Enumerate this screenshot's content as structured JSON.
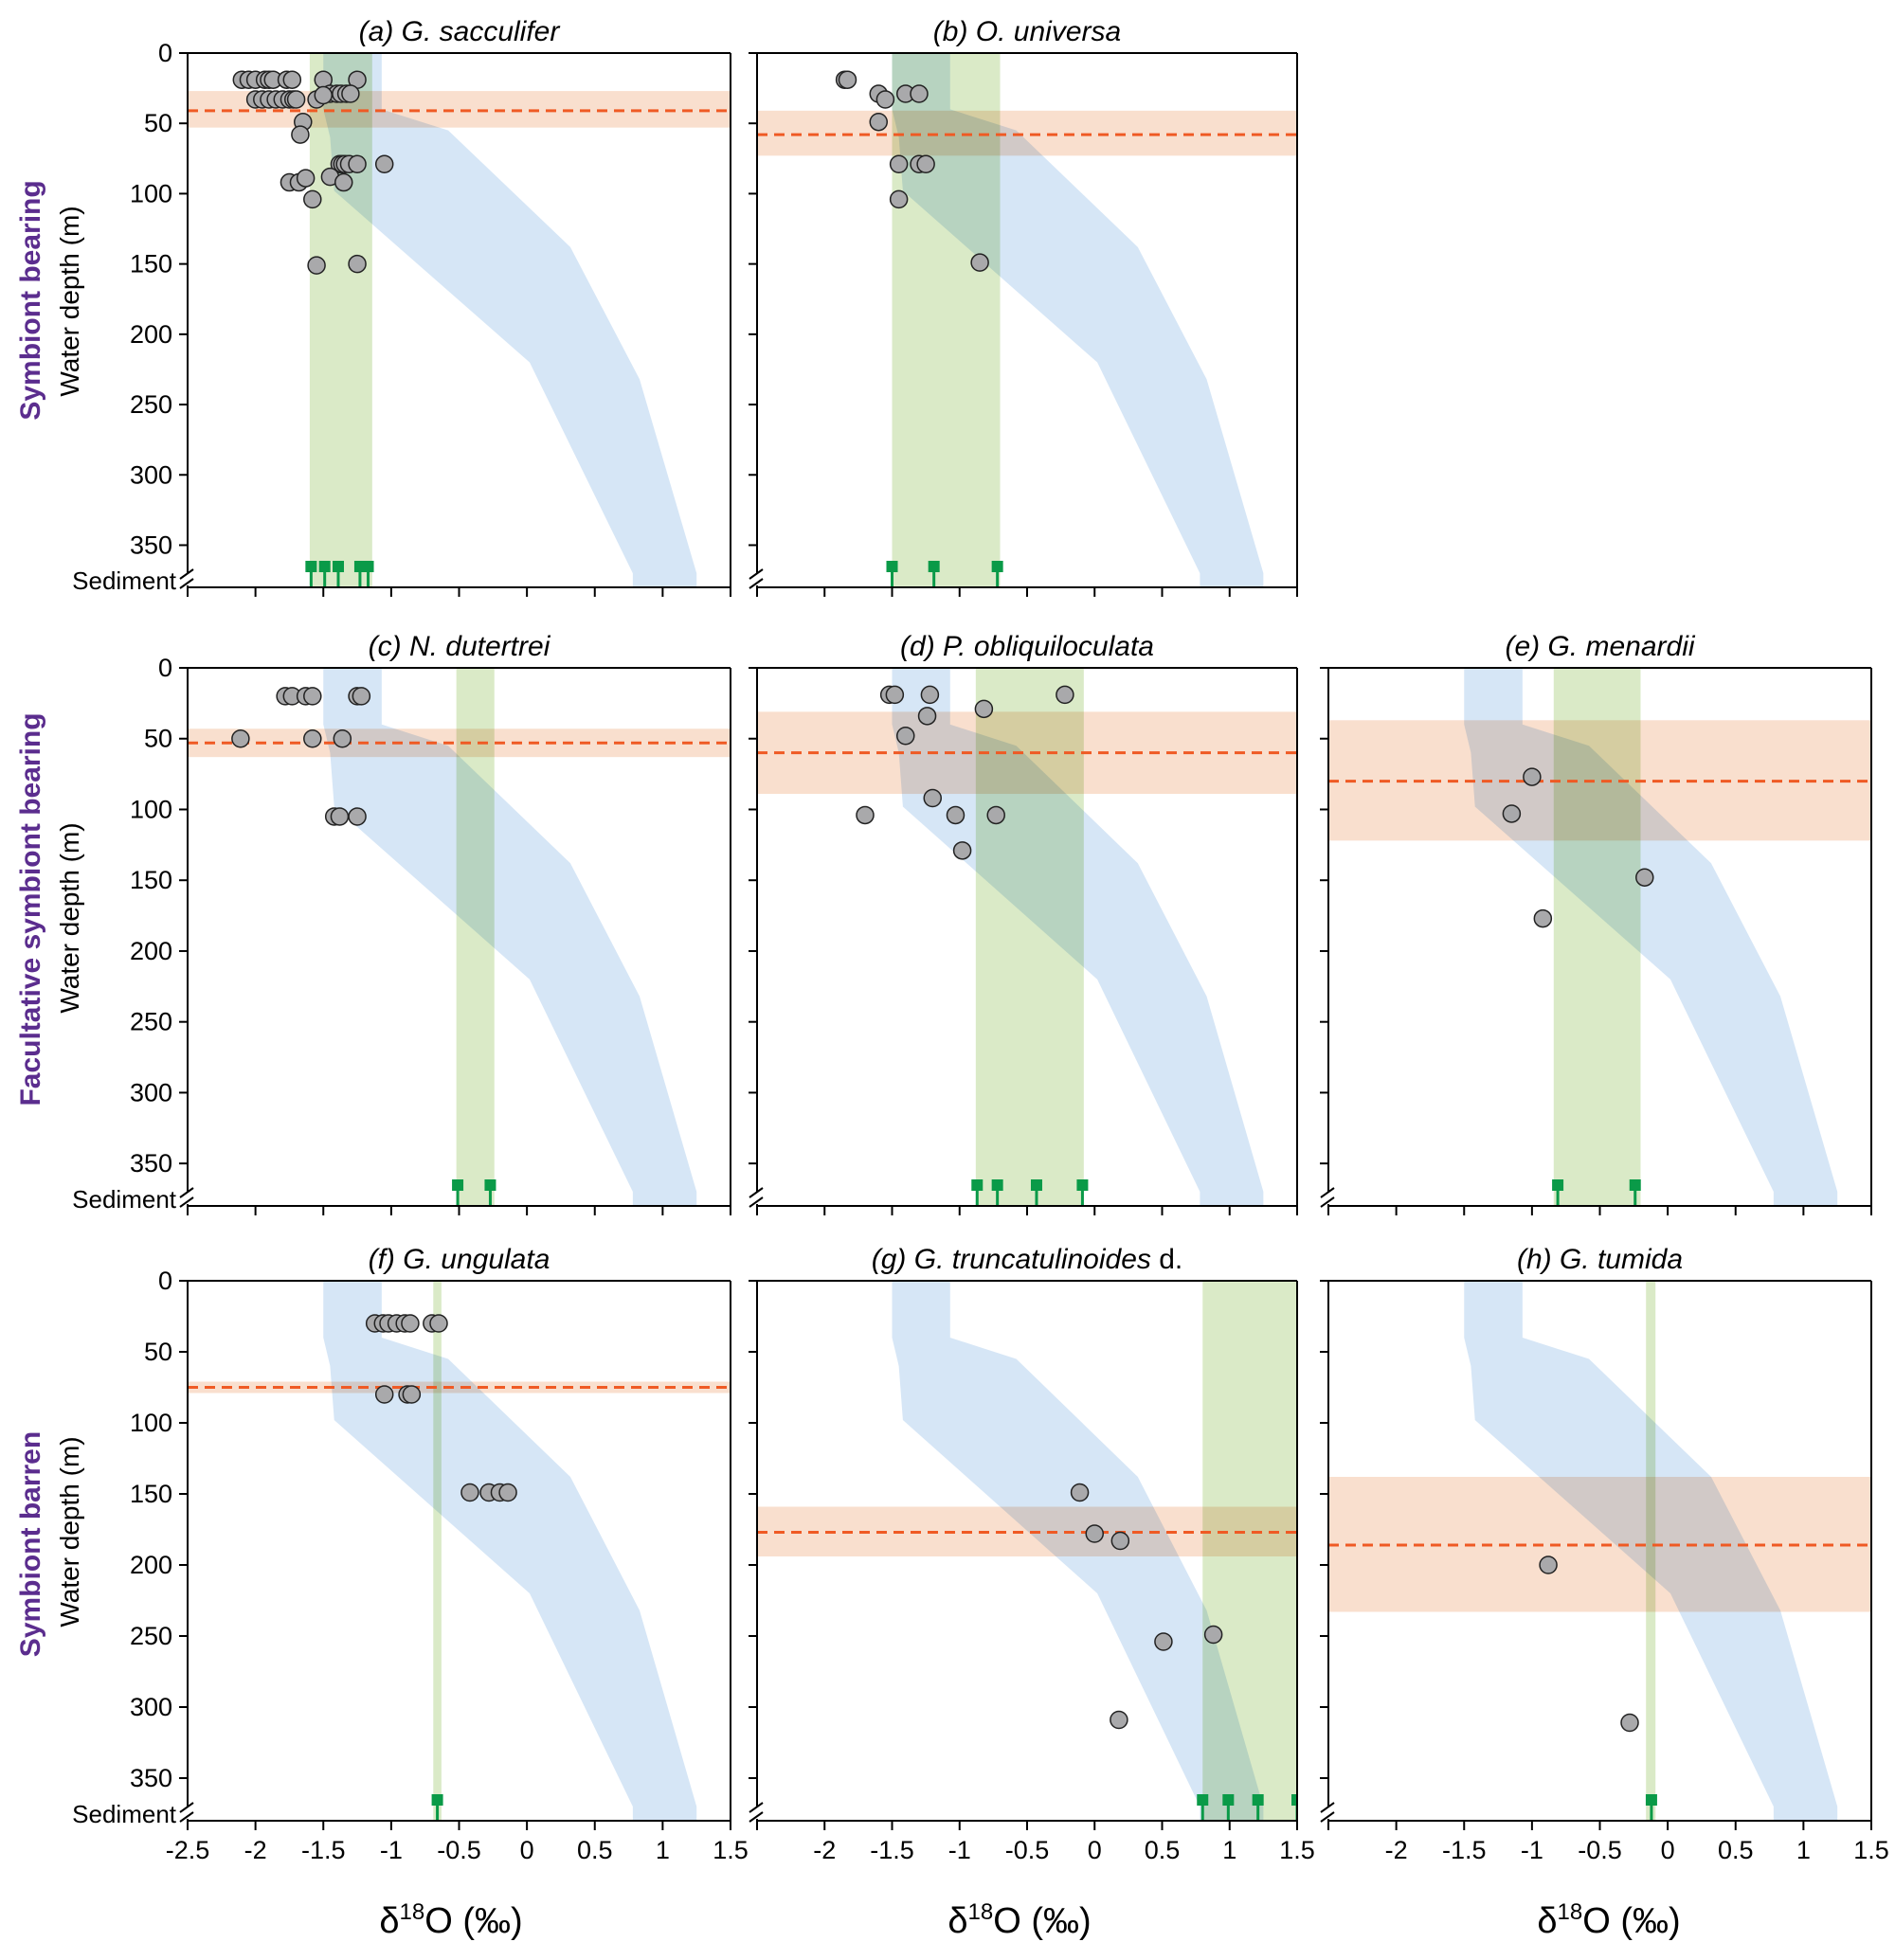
{
  "figure": {
    "x_axis_title_main": "δ",
    "x_axis_title_sup": "18",
    "x_axis_title_rest": "O (‰)",
    "y_axis_title": "Water depth (m)",
    "sediment_label": "Sediment",
    "row_labels": [
      "Symbiont bearing",
      "Facultative symbiont bearing",
      "Symbiont barren"
    ],
    "colors": {
      "point_fill": "#a9a9ab",
      "point_stroke": "#222222",
      "green_band": "#d6e8c1",
      "blue_band": "#cfe2f5",
      "orange_band": "#f8d9c6",
      "orange_line": "#ef5a24",
      "sediment_marker": "#0a9a48",
      "row_label": "#5b2d8e"
    }
  },
  "chart_data": [
    {
      "id": "a",
      "type": "scatter",
      "title_prefix": "(a) ",
      "title_italic": "G. sacculifer",
      "title_suffix": "",
      "xlim": [
        -2.5,
        1.5
      ],
      "ylim": [
        0,
        380
      ],
      "xticks": [
        -2.5,
        -2,
        -1.5,
        -1,
        -0.5,
        0,
        0.5,
        1,
        1.5
      ],
      "yticks": [
        0,
        50,
        100,
        150,
        200,
        250,
        300,
        350
      ],
      "show_xtick_labels": false,
      "show_ytick_labels": true,
      "show_sediment_label": true,
      "show_y_title": true,
      "green_band": [
        -1.6,
        -1.14
      ],
      "orange_band": {
        "center": 41,
        "low": 27,
        "high": 53
      },
      "sediment": [
        -1.59,
        -1.49,
        -1.39,
        -1.23,
        -1.17
      ],
      "points": [
        [
          -2.1,
          19
        ],
        [
          -2.05,
          19
        ],
        [
          -2.0,
          19
        ],
        [
          -1.93,
          19
        ],
        [
          -1.9,
          19
        ],
        [
          -1.87,
          19
        ],
        [
          -1.77,
          19
        ],
        [
          -1.73,
          19
        ],
        [
          -1.5,
          19
        ],
        [
          -1.25,
          19
        ],
        [
          -2.0,
          33
        ],
        [
          -1.95,
          33
        ],
        [
          -1.9,
          33
        ],
        [
          -1.85,
          33
        ],
        [
          -1.8,
          33
        ],
        [
          -1.75,
          33
        ],
        [
          -1.72,
          33
        ],
        [
          -1.7,
          33
        ],
        [
          -1.55,
          33
        ],
        [
          -1.45,
          29
        ],
        [
          -1.4,
          29
        ],
        [
          -1.37,
          29
        ],
        [
          -1.33,
          29
        ],
        [
          -1.3,
          29
        ],
        [
          -1.65,
          49
        ],
        [
          -1.67,
          58
        ],
        [
          -1.5,
          30
        ],
        [
          -1.38,
          79
        ],
        [
          -1.36,
          79
        ],
        [
          -1.34,
          79
        ],
        [
          -1.31,
          79
        ],
        [
          -1.25,
          79
        ],
        [
          -1.05,
          79
        ],
        [
          -1.75,
          92
        ],
        [
          -1.68,
          92
        ],
        [
          -1.63,
          89
        ],
        [
          -1.45,
          88
        ],
        [
          -1.35,
          92
        ],
        [
          -1.58,
          104
        ],
        [
          -1.55,
          151
        ],
        [
          -1.25,
          150
        ]
      ]
    },
    {
      "id": "b",
      "type": "scatter",
      "title_prefix": "(b) ",
      "title_italic": "O. universa",
      "title_suffix": "",
      "xlim": [
        -2.5,
        1.5
      ],
      "ylim": [
        0,
        380
      ],
      "xticks": [
        -2.5,
        -2,
        -1.5,
        -1,
        -0.5,
        0,
        0.5,
        1,
        1.5
      ],
      "yticks": [
        0,
        50,
        100,
        150,
        200,
        250,
        300,
        350
      ],
      "show_xtick_labels": false,
      "show_ytick_labels": false,
      "show_sediment_label": false,
      "show_y_title": false,
      "green_band": [
        -1.5,
        -0.7
      ],
      "orange_band": {
        "center": 58,
        "low": 41,
        "high": 73
      },
      "sediment": [
        -1.5,
        -1.19,
        -0.72
      ],
      "points": [
        [
          -1.85,
          19
        ],
        [
          -1.83,
          19
        ],
        [
          -1.6,
          29
        ],
        [
          -1.55,
          33
        ],
        [
          -1.4,
          29
        ],
        [
          -1.3,
          29
        ],
        [
          -1.6,
          49
        ],
        [
          -1.45,
          79
        ],
        [
          -1.3,
          79
        ],
        [
          -1.25,
          79
        ],
        [
          -1.45,
          104
        ],
        [
          -0.85,
          149
        ]
      ]
    },
    {
      "id": "c",
      "type": "scatter",
      "title_prefix": "(c) ",
      "title_italic": "N. dutertrei",
      "title_suffix": "",
      "xlim": [
        -2.5,
        1.5
      ],
      "ylim": [
        0,
        380
      ],
      "xticks": [
        -2.5,
        -2,
        -1.5,
        -1,
        -0.5,
        0,
        0.5,
        1,
        1.5
      ],
      "yticks": [
        0,
        50,
        100,
        150,
        200,
        250,
        300,
        350
      ],
      "show_xtick_labels": false,
      "show_ytick_labels": true,
      "show_sediment_label": true,
      "show_y_title": true,
      "green_band": [
        -0.52,
        -0.24
      ],
      "orange_band": {
        "center": 53,
        "low": 43,
        "high": 63
      },
      "sediment": [
        -0.51,
        -0.27
      ],
      "points": [
        [
          -1.78,
          20
        ],
        [
          -1.73,
          20
        ],
        [
          -1.63,
          20
        ],
        [
          -1.58,
          20
        ],
        [
          -1.25,
          20
        ],
        [
          -1.22,
          20
        ],
        [
          -2.11,
          50
        ],
        [
          -1.58,
          50
        ],
        [
          -1.36,
          50
        ],
        [
          -1.42,
          105
        ],
        [
          -1.38,
          105
        ],
        [
          -1.25,
          105
        ]
      ]
    },
    {
      "id": "d",
      "type": "scatter",
      "title_prefix": "(d) ",
      "title_italic": "P. obliquiloculata",
      "title_suffix": "",
      "xlim": [
        -2.5,
        1.5
      ],
      "ylim": [
        0,
        380
      ],
      "xticks": [
        -2.5,
        -2,
        -1.5,
        -1,
        -0.5,
        0,
        0.5,
        1,
        1.5
      ],
      "yticks": [
        0,
        50,
        100,
        150,
        200,
        250,
        300,
        350
      ],
      "show_xtick_labels": false,
      "show_ytick_labels": false,
      "show_sediment_label": false,
      "show_y_title": false,
      "green_band": [
        -0.88,
        -0.08
      ],
      "orange_band": {
        "center": 60,
        "low": 31,
        "high": 89
      },
      "sediment": [
        -0.87,
        -0.72,
        -0.43,
        -0.09
      ],
      "points": [
        [
          -1.52,
          19
        ],
        [
          -1.48,
          19
        ],
        [
          -1.22,
          19
        ],
        [
          -0.22,
          19
        ],
        [
          -1.24,
          34
        ],
        [
          -0.82,
          29
        ],
        [
          -1.4,
          48
        ],
        [
          -1.7,
          104
        ],
        [
          -1.2,
          92
        ],
        [
          -1.03,
          104
        ],
        [
          -0.73,
          104
        ],
        [
          -0.98,
          129
        ]
      ]
    },
    {
      "id": "e",
      "type": "scatter",
      "title_prefix": "(e) ",
      "title_italic": "G. menardii",
      "title_suffix": "",
      "xlim": [
        -2.5,
        1.5
      ],
      "ylim": [
        0,
        380
      ],
      "xticks": [
        -2.5,
        -2,
        -1.5,
        -1,
        -0.5,
        0,
        0.5,
        1,
        1.5
      ],
      "yticks": [
        0,
        50,
        100,
        150,
        200,
        250,
        300,
        350
      ],
      "show_xtick_labels": false,
      "show_ytick_labels": false,
      "show_sediment_label": false,
      "show_y_title": false,
      "green_band": [
        -0.84,
        -0.2
      ],
      "orange_band": {
        "center": 80,
        "low": 37,
        "high": 122
      },
      "sediment": [
        -0.81,
        -0.24
      ],
      "points": [
        [
          -1.0,
          77
        ],
        [
          -1.15,
          103
        ],
        [
          -0.17,
          148
        ],
        [
          -0.92,
          177
        ]
      ]
    },
    {
      "id": "f",
      "type": "scatter",
      "title_prefix": "(f) ",
      "title_italic": "G. ungulata",
      "title_suffix": "",
      "xlim": [
        -2.5,
        1.5
      ],
      "ylim": [
        0,
        380
      ],
      "xticks": [
        -2.5,
        -2,
        -1.5,
        -1,
        -0.5,
        0,
        0.5,
        1,
        1.5
      ],
      "yticks": [
        0,
        50,
        100,
        150,
        200,
        250,
        300,
        350
      ],
      "show_xtick_labels": true,
      "show_ytick_labels": true,
      "show_sediment_label": true,
      "show_y_title": true,
      "green_band": [
        -0.69,
        -0.63
      ],
      "orange_band": {
        "center": 75,
        "low": 71,
        "high": 79
      },
      "sediment": [
        -0.66
      ],
      "points": [
        [
          -1.12,
          30
        ],
        [
          -1.06,
          30
        ],
        [
          -1.02,
          30
        ],
        [
          -0.96,
          30
        ],
        [
          -0.9,
          30
        ],
        [
          -0.86,
          30
        ],
        [
          -0.7,
          30
        ],
        [
          -0.65,
          30
        ],
        [
          -1.05,
          80
        ],
        [
          -0.88,
          80
        ],
        [
          -0.85,
          80
        ],
        [
          -0.42,
          149
        ],
        [
          -0.28,
          149
        ],
        [
          -0.2,
          149
        ],
        [
          -0.14,
          149
        ]
      ]
    },
    {
      "id": "g",
      "type": "scatter",
      "title_prefix": "(g) ",
      "title_italic": "G. truncatulinoides",
      "title_suffix": " d.",
      "xlim": [
        -2.5,
        1.5
      ],
      "ylim": [
        0,
        380
      ],
      "xticks": [
        -2.5,
        -2,
        -1.5,
        -1,
        -0.5,
        0,
        0.5,
        1,
        1.5
      ],
      "yticks": [
        0,
        50,
        100,
        150,
        200,
        250,
        300,
        350
      ],
      "show_xtick_labels": true,
      "show_ytick_labels": false,
      "show_sediment_label": false,
      "show_y_title": false,
      "green_band": [
        0.8,
        1.5
      ],
      "orange_band": {
        "center": 177,
        "low": 159,
        "high": 194
      },
      "sediment": [
        0.8,
        0.99,
        1.21,
        1.5
      ],
      "points": [
        [
          -0.11,
          149
        ],
        [
          0.0,
          178
        ],
        [
          0.19,
          183
        ],
        [
          0.51,
          254
        ],
        [
          0.88,
          249
        ],
        [
          0.18,
          309
        ]
      ]
    },
    {
      "id": "h",
      "type": "scatter",
      "title_prefix": "(h) ",
      "title_italic": "G. tumida",
      "title_suffix": "",
      "xlim": [
        -2.5,
        1.5
      ],
      "ylim": [
        0,
        380
      ],
      "xticks": [
        -2.5,
        -2,
        -1.5,
        -1,
        -0.5,
        0,
        0.5,
        1,
        1.5
      ],
      "yticks": [
        0,
        50,
        100,
        150,
        200,
        250,
        300,
        350
      ],
      "show_xtick_labels": true,
      "show_ytick_labels": false,
      "show_sediment_label": false,
      "show_y_title": false,
      "green_band": [
        -0.16,
        -0.09
      ],
      "orange_band": {
        "center": 186,
        "low": 138,
        "high": 233
      },
      "sediment": [
        -0.12
      ],
      "points": [
        [
          -0.88,
          200
        ],
        [
          -0.28,
          311
        ]
      ]
    }
  ],
  "x_tick_label_sets": {
    "f": [
      "-2.5",
      "-2",
      "-1.5",
      "-1",
      "-0.5",
      "0",
      "0.5",
      "1",
      "1.5"
    ],
    "g": [
      "",
      "-2",
      "-1.5",
      "-1",
      "-0.5",
      "0",
      "0.5",
      "1",
      "1.5"
    ],
    "h": [
      "",
      "-2",
      "-1.5",
      "-1",
      "-0.5",
      "0",
      "0.5",
      "1",
      "1.5"
    ]
  },
  "y_tick_labels": [
    "0",
    "50",
    "100",
    "150",
    "200",
    "250",
    "300",
    "350"
  ],
  "blue_envelope": {
    "left_edge": [
      [
        -1.5,
        0
      ],
      [
        -1.5,
        40
      ],
      [
        -1.45,
        60
      ],
      [
        -1.42,
        98
      ],
      [
        0.02,
        220
      ],
      [
        0.78,
        370
      ],
      [
        0.78,
        380
      ]
    ],
    "right_edge": [
      [
        -1.07,
        0
      ],
      [
        -1.07,
        40
      ],
      [
        -0.58,
        55
      ],
      [
        0.32,
        138
      ],
      [
        0.83,
        232
      ],
      [
        1.25,
        370
      ],
      [
        1.25,
        380
      ]
    ]
  }
}
